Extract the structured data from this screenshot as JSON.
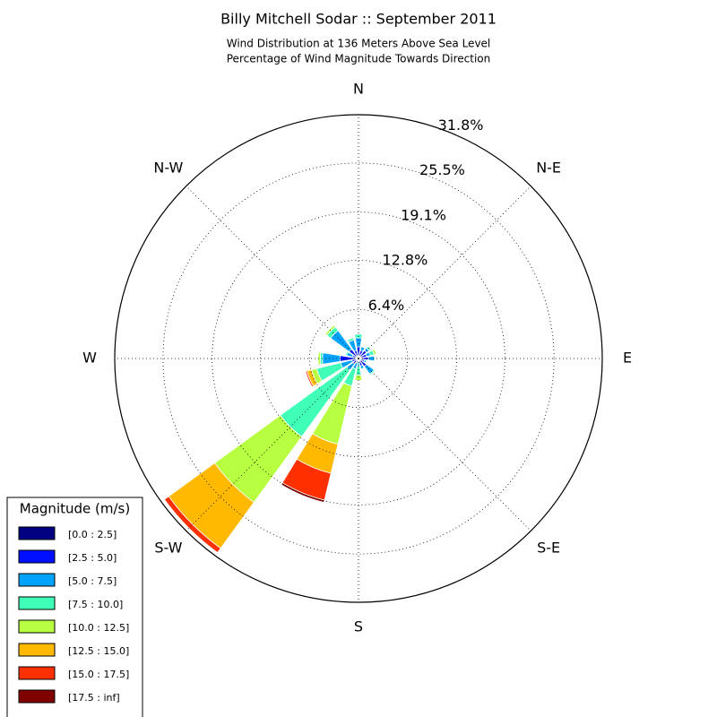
{
  "chart_data": {
    "type": "windrose",
    "title": "Billy Mitchell Sodar :: September 2011",
    "subtitle": [
      "Wind Distribution at 136 Meters Above Sea Level",
      "Percentage of Wind Magnitude Towards Direction"
    ],
    "legend_title": "Magnitude (m/s)",
    "legend": "lower left",
    "categories": [
      "N",
      null,
      "N-E",
      null,
      "E",
      null,
      "S-E",
      null,
      "S",
      null,
      "S-W",
      null,
      "W",
      null,
      "N-W",
      null
    ],
    "ylim": [
      0,
      31.8
    ],
    "yticks": [
      {
        "value": 6.4,
        "label": "6.4%"
      },
      {
        "value": 12.8,
        "label": "12.8%"
      },
      {
        "value": 19.1,
        "label": "19.1%"
      },
      {
        "value": 25.5,
        "label": "25.5%"
      },
      {
        "value": 31.8,
        "label": "31.8%"
      }
    ],
    "grid": true,
    "series": [
      {
        "name": "[0.0 : 2.5]",
        "color": "#000080",
        "values": [
          0.3,
          0.3,
          0.3,
          0.3,
          0.3,
          0.2,
          0.3,
          0.2,
          0.2,
          0.2,
          0.3,
          0.3,
          0.2,
          0.2,
          0.3,
          0.3
        ]
      },
      {
        "name": "[2.5 : 5.0]",
        "color": "#0010ff",
        "values": [
          1.2,
          0.8,
          1.0,
          0.8,
          1.0,
          0.6,
          1.0,
          0.8,
          0.3,
          0.4,
          0.6,
          0.6,
          2.2,
          0.6,
          1.2,
          0.8
        ]
      },
      {
        "name": "[5.0 : 7.5]",
        "color": "#00a4ff",
        "values": [
          1.2,
          0.5,
          0.4,
          0.5,
          0.8,
          0.3,
          1.2,
          0.4,
          0.5,
          0.8,
          1.0,
          1.5,
          2.3,
          0.8,
          3.0,
          1.4
        ]
      },
      {
        "name": "[7.5 : 10.0]",
        "color": "#40ffb7",
        "values": [
          0.5,
          0.1,
          0.3,
          0.5,
          0,
          0,
          0.2,
          0.1,
          1.2,
          2.3,
          10.7,
          3.2,
          0.3,
          0.2,
          0.6,
          0.3
        ]
      },
      {
        "name": "[10.0 : 12.5]",
        "color": "#b7ff40",
        "values": [
          0,
          0,
          0,
          0.3,
          0,
          0,
          0,
          0,
          0.7,
          7.8,
          10.6,
          0.7,
          0.3,
          0,
          0.3,
          0
        ]
      },
      {
        "name": "[12.5 : 15.0]",
        "color": "#ffb900",
        "values": [
          0,
          0,
          0,
          0,
          0,
          0,
          0,
          0,
          0,
          3.9,
          7.4,
          0.6,
          0,
          0,
          0,
          0
        ]
      },
      {
        "name": "[15.0 : 17.5]",
        "color": "#ff3000",
        "values": [
          0,
          0,
          0,
          0,
          0,
          0,
          0,
          0,
          0,
          3.6,
          0.7,
          0.2,
          0,
          0,
          0,
          0
        ]
      },
      {
        "name": "[17.5 : inf]",
        "color": "#800000",
        "values": [
          0,
          0,
          0,
          0,
          0,
          0,
          0,
          0,
          0,
          0.3,
          0,
          0,
          0,
          0,
          0,
          0
        ]
      }
    ]
  }
}
